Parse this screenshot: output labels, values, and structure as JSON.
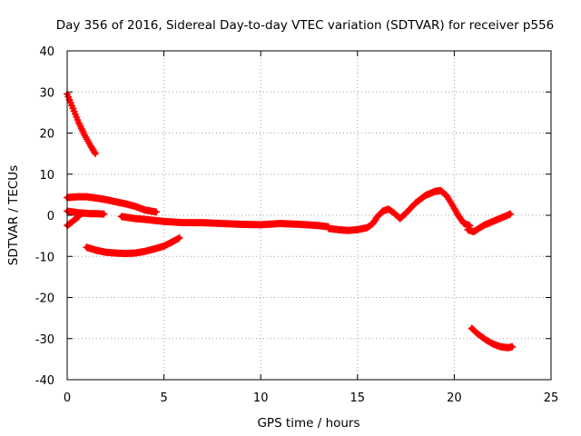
{
  "chart_data": {
    "type": "scatter",
    "title": "Day 356 of 2016, Sidereal Day-to-day VTEC variation (SDTVAR) for receiver p556",
    "xlabel": "GPS time / hours",
    "ylabel": "SDTVAR / TECUs",
    "xlim": [
      0,
      25
    ],
    "ylim": [
      -40,
      40
    ],
    "x_ticks": [
      "0",
      "5",
      "10",
      "15",
      "20",
      "25"
    ],
    "y_ticks": [
      "-40",
      "-30",
      "-20",
      "-10",
      "0",
      "10",
      "20",
      "30",
      "40"
    ],
    "grid": true,
    "marker": "+",
    "color": "#ff0000",
    "series": [
      {
        "name": "s1",
        "x": [
          0.0,
          0.3,
          0.6,
          0.9,
          1.2,
          1.45
        ],
        "y": [
          29.5,
          26.0,
          22.5,
          19.5,
          17.0,
          15.0
        ]
      },
      {
        "name": "s2",
        "x": [
          0.0,
          0.5,
          1.0,
          1.5,
          2.0,
          2.5,
          3.0,
          3.5,
          4.0,
          4.6
        ],
        "y": [
          4.3,
          4.5,
          4.5,
          4.2,
          3.8,
          3.3,
          2.8,
          2.2,
          1.3,
          0.8
        ]
      },
      {
        "name": "s3",
        "x": [
          0.0,
          0.3,
          0.6,
          0.9,
          1.2,
          1.5,
          1.9
        ],
        "y": [
          1.0,
          0.8,
          0.6,
          0.5,
          0.4,
          0.4,
          0.3
        ]
      },
      {
        "name": "s4",
        "x": [
          0.0,
          0.2,
          0.4,
          0.6
        ],
        "y": [
          -2.5,
          -1.8,
          -1.0,
          -0.3
        ]
      },
      {
        "name": "s5",
        "x": [
          1.0,
          1.5,
          2.0,
          2.5,
          3.0,
          3.5,
          4.0,
          4.5,
          5.0,
          5.5,
          5.8
        ],
        "y": [
          -7.8,
          -8.5,
          -9.0,
          -9.2,
          -9.3,
          -9.2,
          -8.8,
          -8.2,
          -7.5,
          -6.3,
          -5.5
        ]
      },
      {
        "name": "s6",
        "x": [
          2.8,
          3.5,
          4.0,
          5.0,
          6.0,
          7.0,
          8.0,
          9.0,
          10.0,
          11.0,
          12.0,
          13.0,
          13.5
        ],
        "y": [
          -0.3,
          -0.8,
          -1.0,
          -1.5,
          -1.8,
          -1.8,
          -2.0,
          -2.2,
          -2.3,
          -2.0,
          -2.2,
          -2.5,
          -2.8
        ]
      },
      {
        "name": "s7",
        "x": [
          13.5,
          14.0,
          14.5,
          15.0,
          15.5,
          15.8,
          16.0,
          16.3,
          16.6,
          16.9,
          17.2,
          17.5,
          18.0,
          18.5,
          19.0,
          19.3,
          19.6,
          19.9,
          20.2,
          20.5,
          20.8
        ],
        "y": [
          -3.2,
          -3.5,
          -3.7,
          -3.5,
          -3.0,
          -2.0,
          -0.5,
          1.0,
          1.5,
          0.5,
          -0.8,
          0.5,
          3.0,
          4.8,
          5.8,
          6.0,
          4.8,
          2.5,
          0.0,
          -2.0,
          -2.5
        ]
      },
      {
        "name": "s8",
        "x": [
          20.7,
          21.0,
          21.5,
          22.0,
          22.5,
          22.9
        ],
        "y": [
          -3.5,
          -4.0,
          -2.5,
          -1.5,
          -0.5,
          0.3
        ]
      },
      {
        "name": "s9",
        "x": [
          20.9,
          21.2,
          21.6,
          22.0,
          22.4,
          22.8,
          23.0
        ],
        "y": [
          -27.5,
          -28.8,
          -30.2,
          -31.3,
          -32.0,
          -32.2,
          -32.0
        ]
      }
    ]
  }
}
